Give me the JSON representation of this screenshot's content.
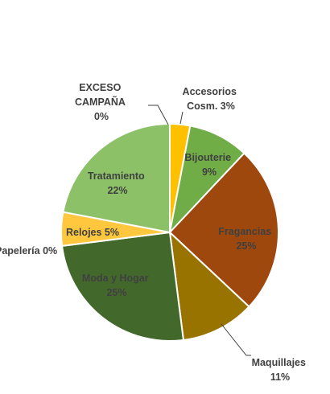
{
  "chart_data": {
    "type": "pie",
    "title": "",
    "slices": [
      {
        "label": "Accesorios Cosm.",
        "line1": "Accesorios",
        "line2": "Cosm. 3%",
        "value": 3,
        "color": "#ffc000"
      },
      {
        "label": "Bijouterie",
        "line1": "Bijouterie",
        "line2": "9%",
        "value": 9,
        "color": "#70ad47"
      },
      {
        "label": "Fragancias",
        "line1": "Fragancias",
        "line2": "25%",
        "value": 25,
        "color": "#9e480e"
      },
      {
        "label": "Maquillajes",
        "line1": "Maquillajes",
        "line2": "11%",
        "value": 11,
        "color": "#997300"
      },
      {
        "label": "Moda y Hogar",
        "line1": "Moda y Hogar",
        "line2": "25%",
        "value": 25,
        "color": "#43682b"
      },
      {
        "label": "Papelería",
        "line1": "Papelería 0%",
        "line2": "",
        "value": 0,
        "color": "#636363"
      },
      {
        "label": "Relojes",
        "line1": "Relojes 5%",
        "line2": "",
        "value": 5,
        "color": "#ffc73d"
      },
      {
        "label": "Tratamiento",
        "line1": "Tratamiento",
        "line2": "22%",
        "value": 22,
        "color": "#8cc168"
      },
      {
        "label": "EXCESO CAMPAÑA",
        "line1": "EXCESO",
        "line2": "CAMPAÑA",
        "line3": "0%",
        "value": 0,
        "color": "#5b9bd5"
      }
    ]
  }
}
